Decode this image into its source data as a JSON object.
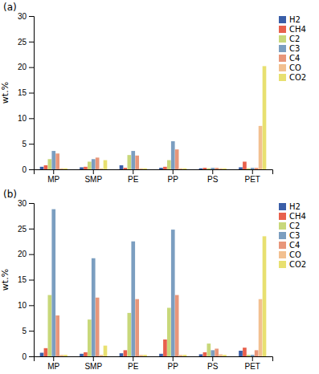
{
  "chart_data": [
    {
      "type": "bar",
      "title": "(a)",
      "ylabel": "wt.%",
      "categories": [
        "MP",
        "SMP",
        "PE",
        "PP",
        "PS",
        "PET"
      ],
      "series": [
        {
          "name": "H2",
          "color": "#3A5EA8",
          "values": [
            0.5,
            0.4,
            0.8,
            0.3,
            0.2,
            0.4
          ]
        },
        {
          "name": "CH4",
          "color": "#E8604C",
          "values": [
            0.8,
            0.5,
            0.3,
            0.5,
            0.3,
            1.5
          ]
        },
        {
          "name": "C2",
          "color": "#C8D87A",
          "values": [
            2.0,
            1.5,
            2.8,
            1.8,
            0.2,
            0.2
          ]
        },
        {
          "name": "C3",
          "color": "#7B9EC0",
          "values": [
            3.6,
            2.0,
            3.6,
            5.5,
            0.3,
            0.3
          ]
        },
        {
          "name": "C4",
          "color": "#E8967A",
          "values": [
            3.1,
            2.3,
            2.7,
            3.9,
            0.3,
            0.3
          ]
        },
        {
          "name": "CO",
          "color": "#F2C090",
          "values": [
            0.2,
            0.2,
            0.2,
            0.2,
            0.2,
            8.5
          ]
        },
        {
          "name": "CO2",
          "color": "#E8E070",
          "values": [
            0.2,
            1.8,
            0.2,
            0.2,
            0.2,
            20.2
          ]
        }
      ],
      "ylim": [
        0,
        30
      ],
      "yticks": [
        0,
        5,
        10,
        15,
        20,
        25,
        30
      ],
      "grid": false,
      "legend": "upper right"
    },
    {
      "type": "bar",
      "title": "(b)",
      "ylabel": "wt.%",
      "categories": [
        "MP",
        "SMP",
        "PE",
        "PP",
        "PS",
        "PET"
      ],
      "series": [
        {
          "name": "H2",
          "color": "#3A5EA8",
          "values": [
            0.7,
            0.5,
            0.6,
            0.5,
            0.4,
            1.1
          ]
        },
        {
          "name": "CH4",
          "color": "#E8604C",
          "values": [
            1.6,
            0.8,
            1.2,
            3.3,
            0.8,
            1.7
          ]
        },
        {
          "name": "C2",
          "color": "#C8D87A",
          "values": [
            12.0,
            7.2,
            8.5,
            9.5,
            2.5,
            0.3
          ]
        },
        {
          "name": "C3",
          "color": "#7B9EC0",
          "values": [
            28.8,
            19.2,
            22.5,
            24.8,
            1.2,
            0.3
          ]
        },
        {
          "name": "C4",
          "color": "#E8967A",
          "values": [
            8.0,
            11.5,
            11.2,
            12.0,
            1.5,
            1.2
          ]
        },
        {
          "name": "CO",
          "color": "#F2C090",
          "values": [
            0.3,
            0.3,
            0.3,
            0.3,
            0.4,
            11.2
          ]
        },
        {
          "name": "CO2",
          "color": "#E8E070",
          "values": [
            0.3,
            2.1,
            0.3,
            0.3,
            0.3,
            23.5
          ]
        }
      ],
      "ylim": [
        0,
        30
      ],
      "yticks": [
        0,
        5,
        10,
        15,
        20,
        25,
        30
      ],
      "grid": false,
      "legend": "upper right"
    }
  ]
}
